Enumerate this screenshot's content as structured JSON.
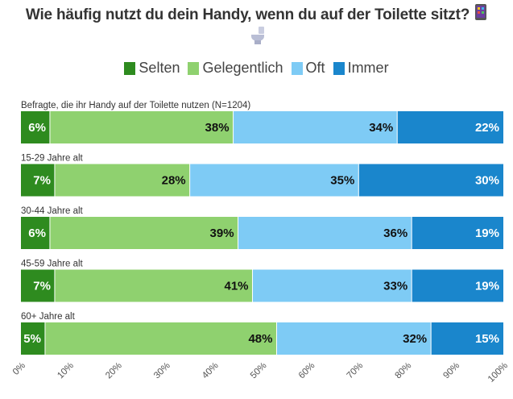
{
  "title": "Wie häufig nutzt du dein Handy, wenn du auf der Toilette sitzt?",
  "title_icon": "mobile-phone-icon",
  "subtitle_icon": "toilet-icon",
  "chart_data": {
    "type": "bar",
    "orientation": "horizontal-stacked-100",
    "categories": [
      "Befragte, die ihr Handy auf der Toilette nutzen (N=1204)",
      "15-29 Jahre alt",
      "30-44 Jahre alt",
      "45-59 Jahre alt",
      "60+ Jahre alt"
    ],
    "series": [
      {
        "name": "Selten",
        "color": "#2e8b1f",
        "values": [
          6,
          7,
          6,
          7,
          5
        ]
      },
      {
        "name": "Gelegentlich",
        "color": "#8fd16f",
        "values": [
          38,
          28,
          39,
          41,
          48
        ]
      },
      {
        "name": "Oft",
        "color": "#7ecbf5",
        "values": [
          34,
          35,
          36,
          33,
          32
        ]
      },
      {
        "name": "Immer",
        "color": "#1a86cc",
        "values": [
          22,
          30,
          19,
          19,
          15
        ]
      }
    ],
    "value_suffix": "%",
    "xlim": [
      0,
      100
    ],
    "xticks": [
      "0%",
      "10%",
      "20%",
      "30%",
      "40%",
      "50%",
      "60%",
      "70%",
      "80%",
      "90%",
      "100%"
    ],
    "legend_position": "top-center",
    "grid": false
  }
}
